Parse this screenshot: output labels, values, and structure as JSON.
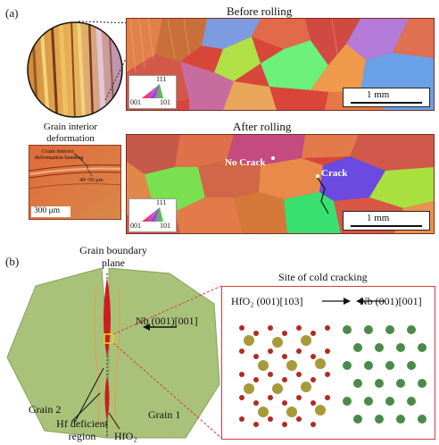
{
  "panel_a": {
    "label": "(a)",
    "title_before": "Before rolling",
    "title_after": "After rolling",
    "inset_caption": [
      "Grain interior",
      "deformation",
      "banding"
    ],
    "micro_label_line1": "Grain interior",
    "micro_label_line2": "deformation banding",
    "micro_width": "40~50 μm",
    "micro_scale": "300 μm",
    "scale_before": "1 mm",
    "scale_after": "1 mm",
    "ipf_top": "111",
    "ipf_left": "001",
    "ipf_right": "101",
    "no_crack": "No Crack",
    "crack": "Crack"
  },
  "panel_b": {
    "label": "(b)",
    "gb_plane_line1": "Grain boundary",
    "gb_plane_line2": "plane",
    "nb_arrow_label": "Nb (001)[001]",
    "grain_left": "Grain 2",
    "grain_right": "Grain 1",
    "hf_deficient_line1": "Hf deficient",
    "hf_deficient_line2": "region",
    "hfo2": "HfO₂",
    "site_title": "Site of cold cracking",
    "hfo2_orientation": "HfO₂ (001)[103]",
    "nb_orientation": "Nb (001)[001]"
  }
}
